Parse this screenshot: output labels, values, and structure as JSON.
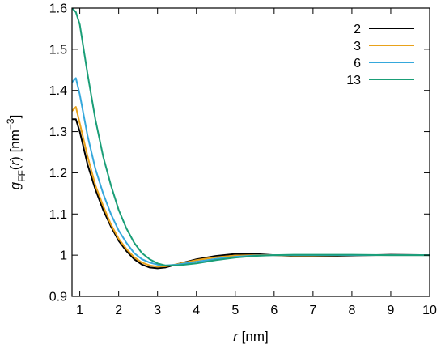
{
  "chart_data": {
    "type": "line",
    "title": "",
    "xlabel": {
      "var": "r",
      "unit": " [nm]"
    },
    "ylabel": {
      "g": "g",
      "sub": "FF",
      "open": "(",
      "var": "r",
      "close": ")",
      "unit_pre": " [nm",
      "unit_sup": "−3",
      "unit_post": "]"
    },
    "xlim": [
      0.8,
      10
    ],
    "ylim": [
      0.9,
      1.6
    ],
    "xticks": [
      1,
      2,
      3,
      4,
      5,
      6,
      7,
      8,
      9,
      10
    ],
    "xtick_labels": [
      "1",
      "2",
      "3",
      "4",
      "5",
      "6",
      "7",
      "8",
      "9",
      "10"
    ],
    "yticks": [
      0.9,
      1.0,
      1.1,
      1.2,
      1.3,
      1.4,
      1.5,
      1.6
    ],
    "ytick_labels": [
      "0.9",
      "1",
      "1.1",
      "1.2",
      "1.3",
      "1.4",
      "1.5",
      "1.6"
    ],
    "grid": false,
    "legend_position": "top-right",
    "series": [
      {
        "name": "2",
        "color": "#000000",
        "x": [
          0.8,
          0.9,
          1.0,
          1.2,
          1.4,
          1.6,
          1.8,
          2.0,
          2.2,
          2.4,
          2.6,
          2.8,
          3.0,
          3.2,
          3.5,
          4.0,
          4.5,
          5.0,
          5.5,
          6.0,
          6.5,
          7.0,
          8.0,
          9.0,
          10.0
        ],
        "y": [
          1.33,
          1.33,
          1.3,
          1.22,
          1.16,
          1.11,
          1.07,
          1.035,
          1.01,
          0.99,
          0.977,
          0.97,
          0.968,
          0.97,
          0.978,
          0.99,
          0.998,
          1.003,
          1.003,
          1.0,
          0.998,
          0.997,
          0.999,
          1.001,
          1.0
        ]
      },
      {
        "name": "3",
        "color": "#E9A21A",
        "x": [
          0.8,
          0.9,
          1.0,
          1.2,
          1.4,
          1.6,
          1.8,
          2.0,
          2.2,
          2.4,
          2.6,
          2.8,
          3.0,
          3.2,
          3.5,
          4.0,
          4.5,
          5.0,
          5.5,
          6.0,
          6.5,
          7.0,
          8.0,
          9.0,
          10.0
        ],
        "y": [
          1.35,
          1.36,
          1.32,
          1.24,
          1.17,
          1.12,
          1.075,
          1.04,
          1.015,
          0.995,
          0.982,
          0.975,
          0.972,
          0.973,
          0.978,
          0.988,
          0.995,
          0.999,
          1.0,
          1.0,
          0.999,
          0.999,
          1.0,
          1.0,
          1.0
        ]
      },
      {
        "name": "6",
        "color": "#35A8DC",
        "x": [
          0.8,
          0.9,
          1.0,
          1.2,
          1.4,
          1.6,
          1.8,
          2.0,
          2.2,
          2.4,
          2.6,
          2.8,
          3.0,
          3.2,
          3.5,
          4.0,
          4.5,
          5.0,
          5.5,
          6.0,
          6.5,
          7.0,
          8.0,
          9.0,
          10.0
        ],
        "y": [
          1.42,
          1.43,
          1.39,
          1.29,
          1.21,
          1.15,
          1.1,
          1.06,
          1.03,
          1.005,
          0.99,
          0.982,
          0.977,
          0.975,
          0.977,
          0.984,
          0.991,
          0.996,
          0.999,
          1.0,
          1.0,
          1.0,
          1.0,
          1.0,
          1.0
        ]
      },
      {
        "name": "13",
        "color": "#1A9E77",
        "x": [
          0.8,
          0.9,
          1.0,
          1.2,
          1.4,
          1.6,
          1.8,
          2.0,
          2.2,
          2.4,
          2.6,
          2.8,
          3.0,
          3.2,
          3.5,
          4.0,
          4.5,
          5.0,
          5.5,
          6.0,
          6.5,
          7.0,
          8.0,
          9.0,
          10.0
        ],
        "y": [
          1.6,
          1.59,
          1.56,
          1.44,
          1.33,
          1.24,
          1.17,
          1.11,
          1.065,
          1.03,
          1.005,
          0.99,
          0.98,
          0.975,
          0.975,
          0.98,
          0.988,
          0.994,
          0.998,
          1.0,
          1.001,
          1.001,
          1.001,
          1.0,
          1.0
        ]
      }
    ]
  }
}
